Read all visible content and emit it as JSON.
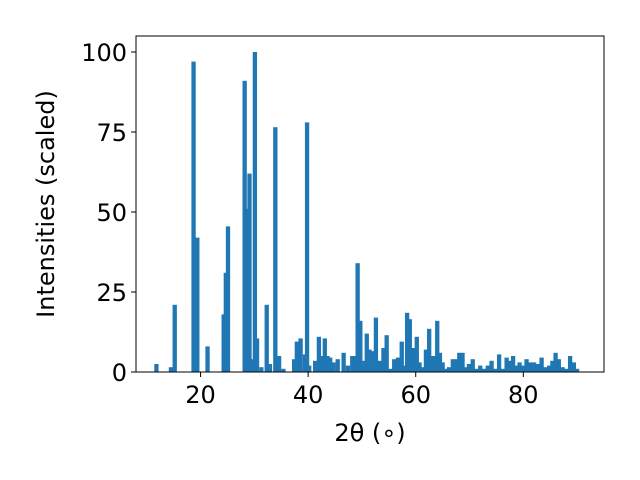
{
  "chart_data": {
    "type": "bar",
    "xlabel": "2θ (∘)",
    "ylabel": "Intensities (scaled)",
    "xlim": [
      8,
      95
    ],
    "ylim": [
      0,
      105
    ],
    "xticks": [
      20,
      40,
      60,
      80
    ],
    "yticks": [
      0,
      25,
      50,
      75,
      100
    ],
    "bar_color": "#1f77b4",
    "bar_width": 0.8,
    "series": [
      {
        "x": [
          11.8,
          14.5,
          15.2,
          18.7,
          19.4,
          21.3,
          24.3,
          24.7,
          25.1,
          28.2,
          28.7,
          29.1,
          29.6,
          30.1,
          30.5,
          31.3,
          32.3,
          32.9,
          33.9,
          34.6,
          35.4,
          37.4,
          37.9,
          38.6,
          39.4,
          39.8,
          40.2,
          41.3,
          42.0,
          42.6,
          43.1,
          43.6,
          44.1,
          44.7,
          45.5,
          46.6,
          47.4,
          48.2,
          48.7,
          49.2,
          49.7,
          50.5,
          50.9,
          51.4,
          51.9,
          52.6,
          53.3,
          54.0,
          54.6,
          55.3,
          56.0,
          56.7,
          57.4,
          57.8,
          58.4,
          58.9,
          59.5,
          60.2,
          60.7,
          61.3,
          61.9,
          62.5,
          62.9,
          63.4,
          64.0,
          64.5,
          65.0,
          65.6,
          66.2,
          66.9,
          67.5,
          68.1,
          68.7,
          69.2,
          69.9,
          70.6,
          71.3,
          72.0,
          72.7,
          73.4,
          74.1,
          74.8,
          75.5,
          76.2,
          76.9,
          77.5,
          78.1,
          78.7,
          79.3,
          79.9,
          80.6,
          81.3,
          82.0,
          82.7,
          83.4,
          84.1,
          84.8,
          85.4,
          86.0,
          86.6,
          87.3,
          88.0,
          88.7,
          89.4,
          90.0
        ],
        "values": [
          2.5,
          1.5,
          21,
          97,
          42,
          8,
          18,
          31,
          45.5,
          91,
          51,
          62,
          4,
          100,
          10.5,
          1.5,
          21,
          2.5,
          76.5,
          5,
          1,
          4,
          9.5,
          10.5,
          5.5,
          78,
          2,
          3.5,
          11,
          5,
          10.5,
          5,
          4.5,
          3,
          4,
          6,
          2,
          5,
          5,
          34,
          16,
          3.5,
          12,
          7,
          6.5,
          17,
          3.5,
          7.5,
          11.5,
          1,
          4,
          4.5,
          9.5,
          2,
          18.5,
          16.5,
          7.5,
          11,
          3,
          1.5,
          7,
          13.5,
          5,
          5,
          16,
          6,
          3,
          1,
          1.5,
          4,
          4,
          6,
          6,
          1.5,
          2.5,
          4,
          1,
          2,
          1,
          2,
          3.5,
          1,
          5.5,
          1,
          4.5,
          3.5,
          5,
          2,
          3,
          2,
          4,
          3,
          3,
          2.5,
          4.5,
          1.5,
          2,
          3.5,
          6,
          4,
          1.5,
          1,
          5,
          3,
          1
        ]
      }
    ]
  }
}
